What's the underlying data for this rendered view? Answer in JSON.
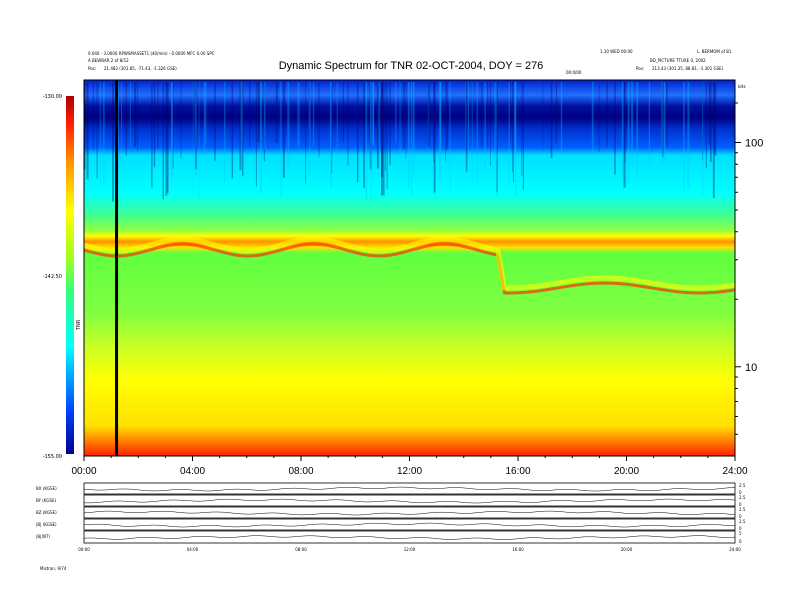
{
  "header": {
    "title": "Dynamic Spectrum for TNR 02-OCT-2004, DOY = 276",
    "left_line1": "0.040 - 3.0000 RPWSMASSET1 (40/min) - 0.0000 MFC 0.00 SPC",
    "left_line2": "A BEWBAR 2 of 8/12",
    "left_pos_label": "Pos:",
    "left_pos": "21.482 (301.85, -71.43, -1.326 GSE)",
    "center_note": "00:0/00",
    "right_line1": "1.10 WED 00:00",
    "right_line1b": "L. BERMOM of 81",
    "right_line2": "BD_PICTURE TTUXE 0, 2002",
    "right_pos_label": "Pos:",
    "right_pos": "213.43 (301.35, 88.81, -1.301 GSE)",
    "unit": "kHz"
  },
  "colorbar": {
    "max_label": "-130.00",
    "mid_label": "-142.50",
    "min_label": "-155.00",
    "axis_label": "TNR"
  },
  "chart_data": {
    "type": "heatmap",
    "title": "Dynamic Spectrum for TNR 02-OCT-2004, DOY = 276",
    "x_ticks": [
      "00:00",
      "04:00",
      "08:00",
      "12:00",
      "16:00",
      "20:00",
      "24:00"
    ],
    "x_range_hours": [
      0,
      24
    ],
    "y_scale": "log",
    "y_ticks": [
      "100",
      "10"
    ],
    "y_tick_values": [
      100,
      10
    ],
    "y_range": [
      4,
      190
    ],
    "z_range": [
      -155,
      -130
    ],
    "colormap": [
      "#0000a0",
      "#0050ff",
      "#00ffff",
      "#40ff80",
      "#a0ff20",
      "#ffff00",
      "#ffa000",
      "#ff2000",
      "#c00000"
    ],
    "marker_line_hours": 1.2,
    "band_levels": [
      {
        "level": "low_frequency_floor",
        "value": -132.0
      },
      {
        "level": "broad_yellow",
        "value": -140.0
      },
      {
        "level": "green_plateau",
        "value": -145.0
      },
      {
        "level": "cyan_region",
        "value": -148.5
      },
      {
        "level": "dark_blue_top",
        "value": -153.0
      }
    ]
  },
  "panels": [
    {
      "label": "BX (KGSE)",
      "right_ticks": [
        "2.5",
        "0"
      ]
    },
    {
      "label": "BY (KGSE)",
      "right_ticks": [
        "2.5",
        "0"
      ]
    },
    {
      "label": "BZ (KGSE)",
      "right_ticks": [
        "2.5",
        "0"
      ]
    },
    {
      "label": "|B| (KGSE)",
      "right_ticks": [
        "2.5",
        "0"
      ]
    },
    {
      "label": "|B|(NT)",
      "right_ticks": [
        "5",
        "0"
      ]
    }
  ],
  "panel_x_ticks": [
    "00:00",
    "04:00",
    "08:00",
    "12:00",
    "16:00",
    "20:00",
    "24:00"
  ],
  "footer_label": "Mistran, 9/74"
}
